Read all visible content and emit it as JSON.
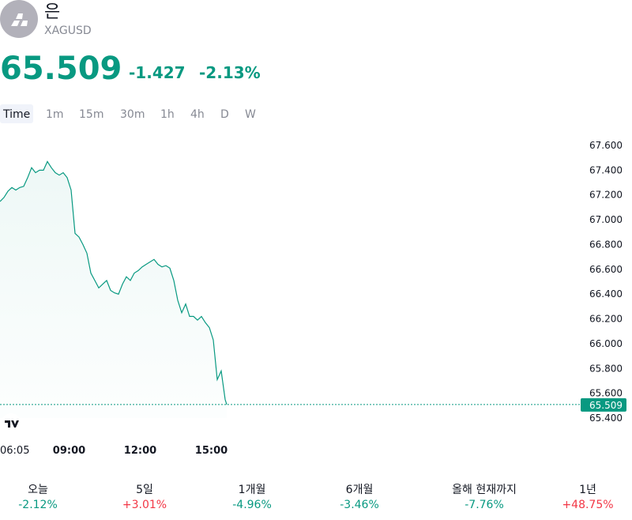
{
  "header": {
    "name": "은",
    "symbol": "XAGUSD",
    "price": "65.509",
    "change": "-1.427",
    "change_pct": "-2.13%"
  },
  "timeframes": [
    "Time",
    "1m",
    "15m",
    "30m",
    "1h",
    "4h",
    "D",
    "W"
  ],
  "chart_data": {
    "type": "line",
    "color": "#089981",
    "x": [
      "06:05",
      "06:15",
      "06:25",
      "06:35",
      "06:45",
      "06:55",
      "07:05",
      "07:15",
      "07:25",
      "07:35",
      "07:45",
      "07:55",
      "08:05",
      "08:15",
      "08:25",
      "08:35",
      "08:45",
      "08:55",
      "09:05",
      "09:15",
      "09:25",
      "09:35",
      "09:45",
      "09:55",
      "10:05",
      "10:15",
      "10:25",
      "10:35",
      "10:45",
      "10:55",
      "11:05",
      "11:15",
      "11:25",
      "11:35",
      "11:45",
      "11:55",
      "12:05",
      "12:15",
      "12:25",
      "12:35",
      "12:45",
      "12:55",
      "13:05",
      "13:15",
      "13:25",
      "13:35",
      "13:45",
      "13:55",
      "14:05",
      "14:15",
      "14:25",
      "14:35",
      "14:45",
      "14:55",
      "15:05",
      "15:15",
      "15:25",
      "15:35",
      "15:39"
    ],
    "values": [
      67.147,
      67.18,
      67.23,
      67.26,
      67.24,
      67.26,
      67.27,
      67.34,
      67.42,
      67.38,
      67.4,
      67.4,
      67.47,
      67.42,
      67.38,
      67.36,
      67.38,
      67.34,
      67.24,
      66.89,
      66.86,
      66.8,
      66.73,
      66.57,
      66.51,
      66.45,
      66.48,
      66.51,
      66.43,
      66.41,
      66.4,
      66.48,
      66.54,
      66.51,
      66.57,
      66.59,
      66.62,
      66.64,
      66.66,
      66.68,
      66.64,
      66.62,
      66.63,
      66.61,
      66.51,
      66.35,
      66.25,
      66.32,
      66.22,
      66.22,
      66.19,
      66.22,
      66.17,
      66.13,
      66.03,
      65.71,
      65.78,
      65.55,
      65.509
    ],
    "ylim": [
      65.4,
      67.6
    ],
    "yticks": [
      {
        "value": 65.4,
        "label": "65.400"
      },
      {
        "value": 65.6,
        "label": "65.600"
      },
      {
        "value": 65.8,
        "label": "65.800"
      },
      {
        "value": 66.0,
        "label": "66.000"
      },
      {
        "value": 66.2,
        "label": "66.200"
      },
      {
        "value": 66.4,
        "label": "66.400"
      },
      {
        "value": 66.6,
        "label": "66.600"
      },
      {
        "value": 66.8,
        "label": "66.800"
      },
      {
        "value": 67.0,
        "label": "67.000"
      },
      {
        "value": 67.2,
        "label": "67.200"
      },
      {
        "value": 67.4,
        "label": "67.400"
      },
      {
        "value": 67.6,
        "label": "67.600"
      }
    ],
    "xticks": [
      "06:05",
      "09:00",
      "12:00",
      "15:00"
    ]
  },
  "performance": [
    {
      "label": "오늘",
      "value": "-2.12%",
      "color": "#089981"
    },
    {
      "label": "5일",
      "value": "+3.01%",
      "color": "#f23645"
    },
    {
      "label": "1개월",
      "value": "-4.96%",
      "color": "#089981"
    },
    {
      "label": "6개월",
      "value": "-3.46%",
      "color": "#089981"
    },
    {
      "label": "올해 현재까지",
      "value": "-7.76%",
      "color": "#089981"
    },
    {
      "label": "1년",
      "value": "+48.75%",
      "color": "#f23645"
    }
  ]
}
